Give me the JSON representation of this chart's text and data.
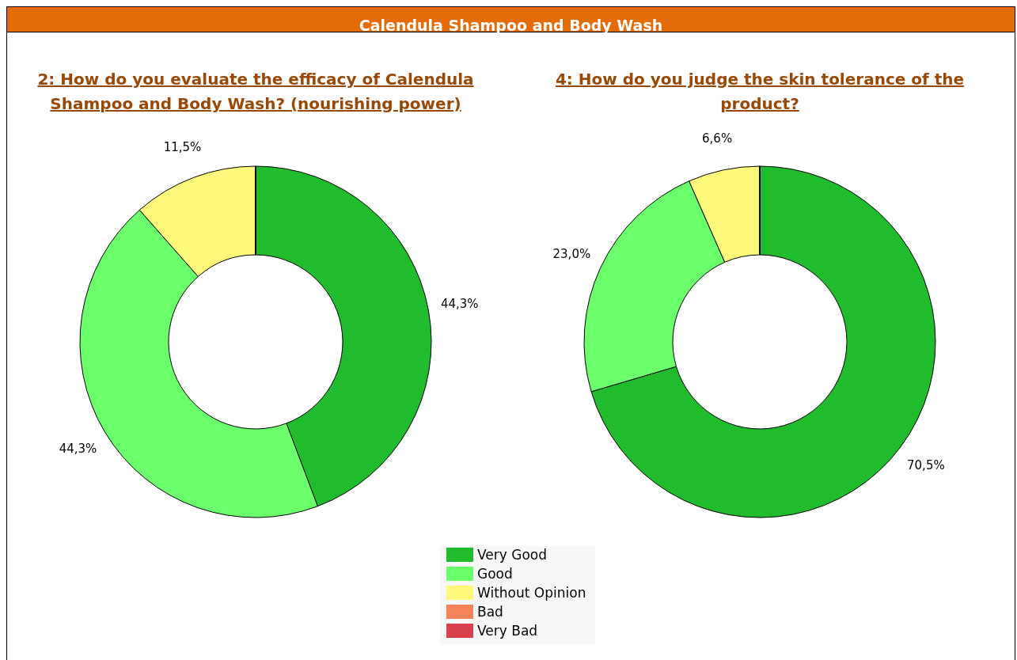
{
  "chart_data": [
    {
      "type": "donut",
      "title": "Calendula Shampoo and Body Wash",
      "subtitle": "2: How do you evaluate the efficacy of Calendula Shampoo and Body Wash? (nourishing power)",
      "categories": [
        "Very Good",
        "Good",
        "Without Opinion",
        "Bad",
        "Very Bad"
      ],
      "values": [
        44.3,
        44.3,
        11.5,
        0,
        0
      ],
      "colors": [
        "#21bb2e",
        "#6bff6b",
        "#fff87a",
        "#f5835a",
        "#d9404a"
      ],
      "value_labels": [
        "44,3%",
        "44,3%",
        "11,5%",
        null,
        null
      ],
      "legend": "bottom"
    },
    {
      "type": "donut",
      "title": "4: How do you judge the skin tolerance of the product?",
      "categories": [
        null,
        null,
        null,
        null,
        null
      ],
      "values": [
        70.5,
        23.0,
        6.6,
        0,
        0
      ],
      "colors": [
        "#21bb2e",
        "#6bff6b",
        "#fff87a",
        "#f5835a",
        "#d9404a"
      ],
      "value_labels": [
        "70,5%",
        "23,0%",
        "6,6%",
        null,
        null
      ]
    }
  ]
}
